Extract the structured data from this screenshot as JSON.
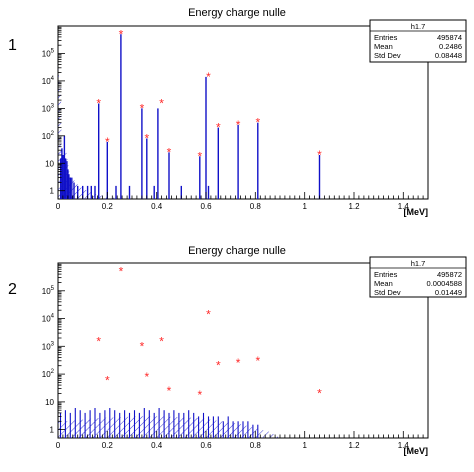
{
  "panels": [
    {
      "number": "1",
      "title": "Energy charge nulle",
      "stats": {
        "name": "h1.7",
        "rows": [
          {
            "label": "Entries",
            "value": "495874"
          },
          {
            "label": "Mean",
            "value": "0.2486"
          },
          {
            "label": "Std Dev",
            "value": "0.08448"
          }
        ]
      },
      "x_unit_label": "[MeV]"
    },
    {
      "number": "2",
      "title": "Energy charge nulle",
      "stats": {
        "name": "h1.7",
        "rows": [
          {
            "label": "Entries",
            "value": "495872"
          },
          {
            "label": "Mean",
            "value": "0.0004588"
          },
          {
            "label": "Std Dev",
            "value": "0.01449"
          }
        ]
      },
      "x_unit_label": "[MeV]"
    }
  ],
  "colors": {
    "histogram": "#1010c8",
    "markers": "#ff2a2a",
    "axes": "#000000"
  },
  "chart_data": [
    {
      "type": "bar",
      "title": "Energy charge nulle",
      "xlabel": "[MeV]",
      "ylabel": "",
      "xlim": [
        0,
        1.5
      ],
      "ylim": [
        0.5,
        1000000
      ],
      "y_scale": "log",
      "x_ticks": [
        "0",
        "0.2",
        "0.4",
        "0.6",
        "0.8",
        "1",
        "1.2",
        "1.4"
      ],
      "x_tick_values": [
        0,
        0.2,
        0.4,
        0.6,
        0.8,
        1.0,
        1.2,
        1.4
      ],
      "y_ticks": [
        1,
        10,
        100,
        1000,
        10000,
        100000
      ],
      "grid": false,
      "legend": "stats box top-right",
      "series": [
        {
          "style": "histogram-lines",
          "x": [
            0.011,
            0.016,
            0.021,
            0.026,
            0.031,
            0.036,
            0.04,
            0.044,
            0.05,
            0.056,
            0.065,
            0.08,
            0.1,
            0.12,
            0.135,
            0.15,
            0.165,
            0.2,
            0.235,
            0.255,
            0.29,
            0.34,
            0.36,
            0.39,
            0.405,
            0.45,
            0.5,
            0.575,
            0.6,
            0.61,
            0.65,
            0.73,
            0.81,
            1.06
          ],
          "y": [
            15,
            35,
            20,
            100,
            15,
            12,
            6,
            4,
            3,
            3,
            2,
            1.5,
            1.5,
            1.5,
            1.5,
            1.5,
            1500,
            60,
            1.5,
            500000,
            1.5,
            1000,
            80,
            1.5,
            1000,
            25,
            1.5,
            18,
            14000,
            1.5,
            200,
            250,
            300,
            20
          ]
        },
        {
          "style": "markers",
          "x": [
            0.165,
            0.2,
            0.255,
            0.34,
            0.36,
            0.42,
            0.45,
            0.575,
            0.61,
            0.65,
            0.73,
            0.81,
            1.06
          ],
          "y": [
            1500,
            60,
            500000,
            1000,
            80,
            1500,
            25,
            18,
            14000,
            200,
            250,
            300,
            20
          ]
        }
      ]
    },
    {
      "type": "bar",
      "title": "Energy charge nulle",
      "xlabel": "[MeV]",
      "ylabel": "",
      "xlim": [
        0,
        1.5
      ],
      "ylim": [
        0.5,
        1000000
      ],
      "y_scale": "log",
      "x_ticks": [
        "0",
        "0.2",
        "0.4",
        "0.6",
        "0.8",
        "1",
        "1.2",
        "1.4"
      ],
      "x_tick_values": [
        0,
        0.2,
        0.4,
        0.6,
        0.8,
        1.0,
        1.2,
        1.4
      ],
      "y_ticks": [
        1,
        10,
        100,
        1000,
        10000,
        100000
      ],
      "grid": false,
      "legend": "stats box top-right",
      "series": [
        {
          "style": "histogram-lines",
          "x": [
            0.01,
            0.03,
            0.05,
            0.07,
            0.09,
            0.11,
            0.13,
            0.15,
            0.17,
            0.19,
            0.21,
            0.23,
            0.25,
            0.27,
            0.29,
            0.31,
            0.33,
            0.35,
            0.37,
            0.39,
            0.41,
            0.43,
            0.45,
            0.47,
            0.49,
            0.51,
            0.53,
            0.55,
            0.57,
            0.59,
            0.61,
            0.63,
            0.65,
            0.67,
            0.69,
            0.71,
            0.73,
            0.75,
            0.77,
            0.79,
            0.81
          ],
          "y": [
            4,
            5,
            4,
            6,
            5,
            4,
            5,
            6,
            4,
            5,
            6,
            5,
            4,
            5,
            4,
            5,
            4,
            6,
            5,
            4,
            6,
            5,
            4,
            5,
            4,
            4,
            5,
            4,
            3,
            4,
            3,
            3,
            3,
            2,
            3,
            2,
            2,
            2,
            2,
            1.5,
            1.5
          ]
        },
        {
          "style": "markers",
          "x": [
            0.165,
            0.2,
            0.255,
            0.34,
            0.36,
            0.42,
            0.45,
            0.575,
            0.61,
            0.65,
            0.73,
            0.81,
            1.06
          ],
          "y": [
            1500,
            60,
            500000,
            1000,
            80,
            1500,
            25,
            18,
            14000,
            200,
            250,
            300,
            20
          ]
        }
      ]
    }
  ]
}
